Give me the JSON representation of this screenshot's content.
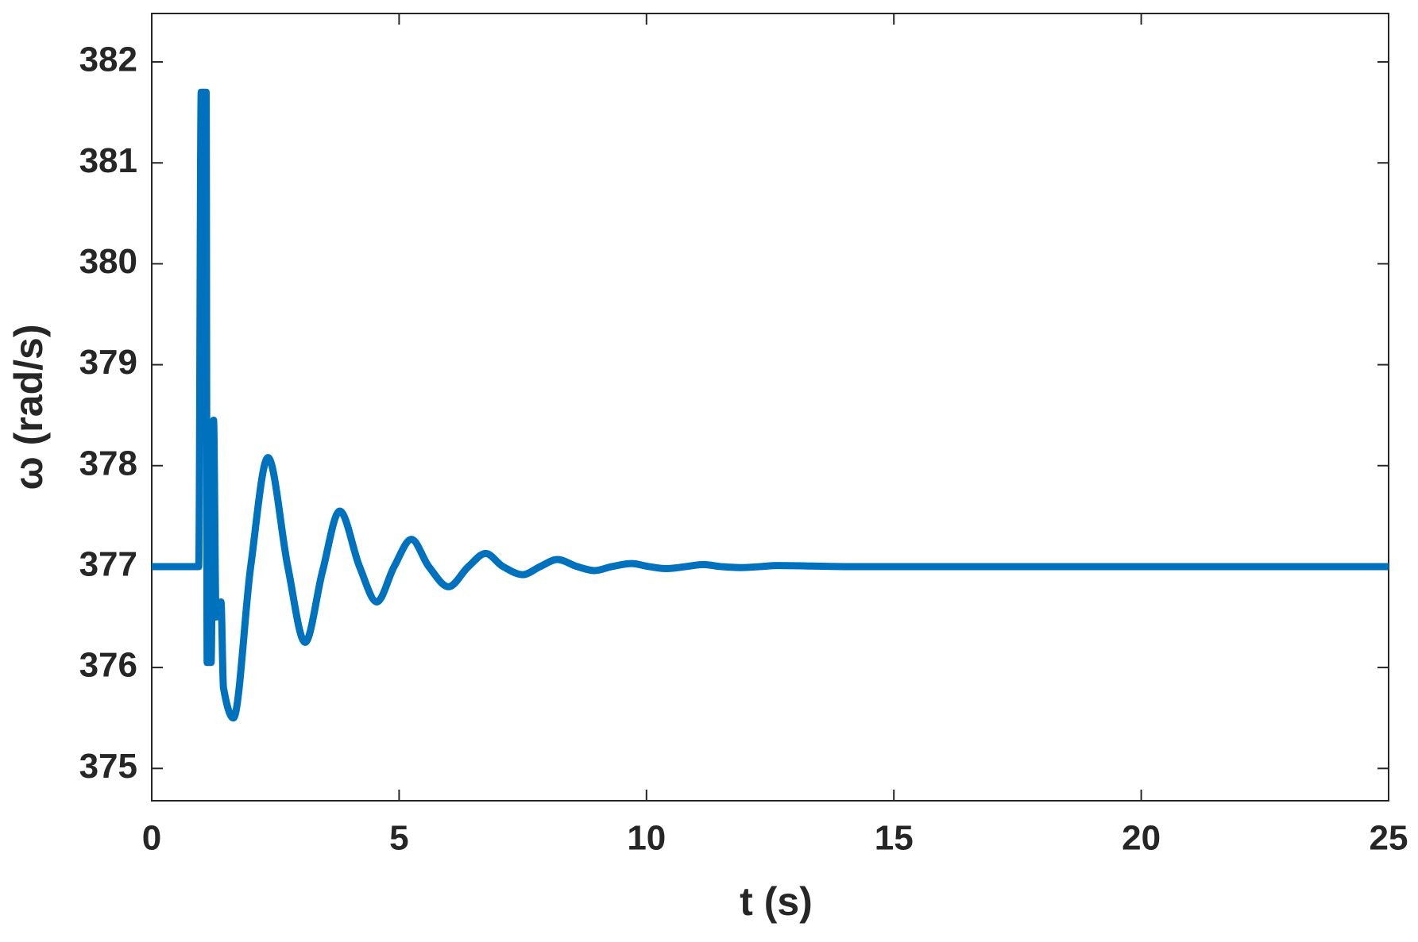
{
  "chart_data": {
    "type": "line",
    "x_label": "t (s)",
    "y_label": "ω (rad/s)",
    "x": [
      0,
      0.95,
      1.0,
      1.1,
      1.12,
      1.2,
      1.25,
      1.3,
      1.4,
      1.45,
      1.65,
      2.0,
      2.35,
      2.75,
      3.1,
      3.45,
      3.8,
      4.2,
      4.55,
      4.9,
      5.25,
      5.6,
      6.0,
      6.4,
      6.75,
      7.1,
      7.5,
      7.85,
      8.2,
      8.6,
      8.95,
      9.3,
      9.7,
      10.05,
      10.4,
      10.8,
      11.15,
      11.5,
      11.9,
      12.3,
      12.65,
      14,
      25
    ],
    "series": [
      {
        "name": "ω",
        "color": "#0072bd",
        "values": [
          377,
          377,
          381.7,
          381.7,
          376.05,
          376.05,
          378.45,
          376.5,
          376.65,
          375.8,
          375.5,
          377.0,
          378.08,
          377.0,
          376.25,
          376.95,
          377.55,
          377.0,
          376.65,
          377.0,
          377.27,
          377.0,
          376.8,
          377.0,
          377.13,
          377.0,
          376.92,
          377.0,
          377.07,
          377.0,
          376.96,
          377.0,
          377.03,
          377.0,
          376.98,
          377.0,
          377.02,
          377.0,
          376.99,
          377.0,
          377.01,
          377,
          377
        ]
      }
    ],
    "xlim": [
      0,
      25
    ],
    "xticks": [
      0,
      5,
      10,
      15,
      20,
      25
    ],
    "ylim": [
      374.68,
      382.48
    ],
    "yticks": [
      375,
      376,
      377,
      378,
      379,
      380,
      381,
      382
    ],
    "grid": false
  }
}
